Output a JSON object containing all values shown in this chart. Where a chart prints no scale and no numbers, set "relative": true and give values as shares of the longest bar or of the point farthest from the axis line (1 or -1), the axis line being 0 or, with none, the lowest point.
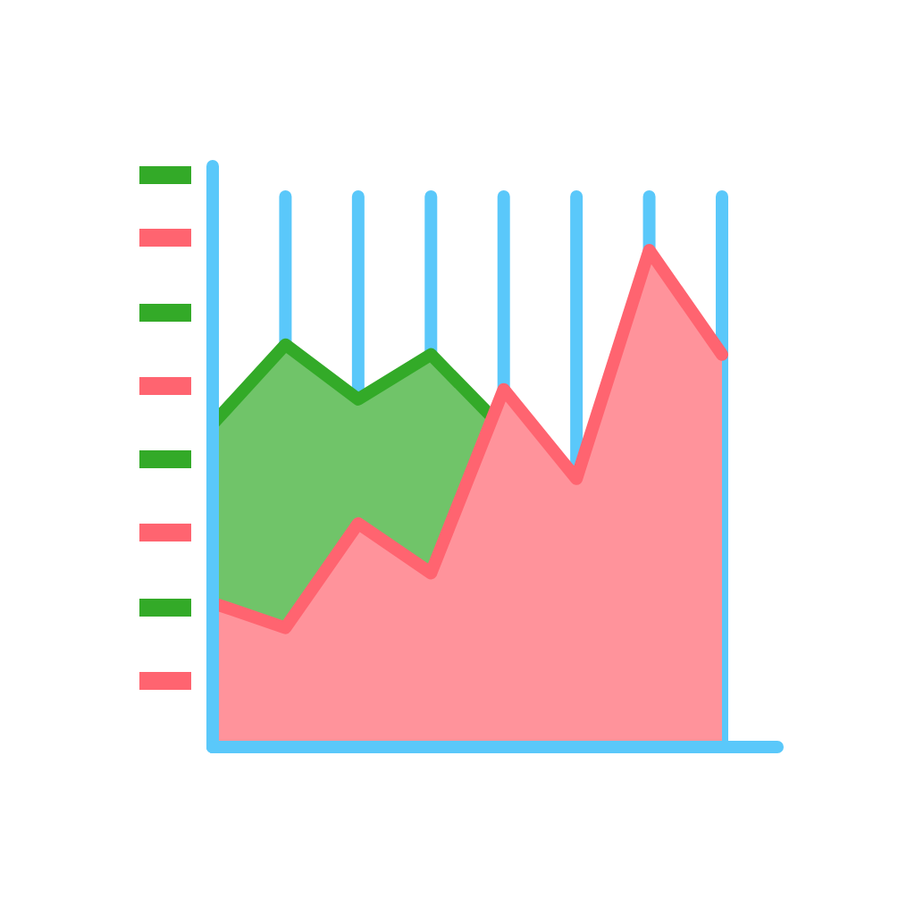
{
  "chart_data": {
    "type": "area",
    "relative": true,
    "grid": "x",
    "categories": [
      null,
      null,
      null,
      null,
      null,
      null,
      null,
      null
    ],
    "series": [
      {
        "color": "#33aa28",
        "values": [
          0.65,
          0.81,
          0.7,
          0.79,
          0.64,
          null,
          null,
          null
        ]
      },
      {
        "color": "#ff6470",
        "values": [
          0.29,
          0.24,
          0.45,
          0.35,
          0.72,
          0.54,
          1,
          0.79
        ]
      }
    ]
  }
}
